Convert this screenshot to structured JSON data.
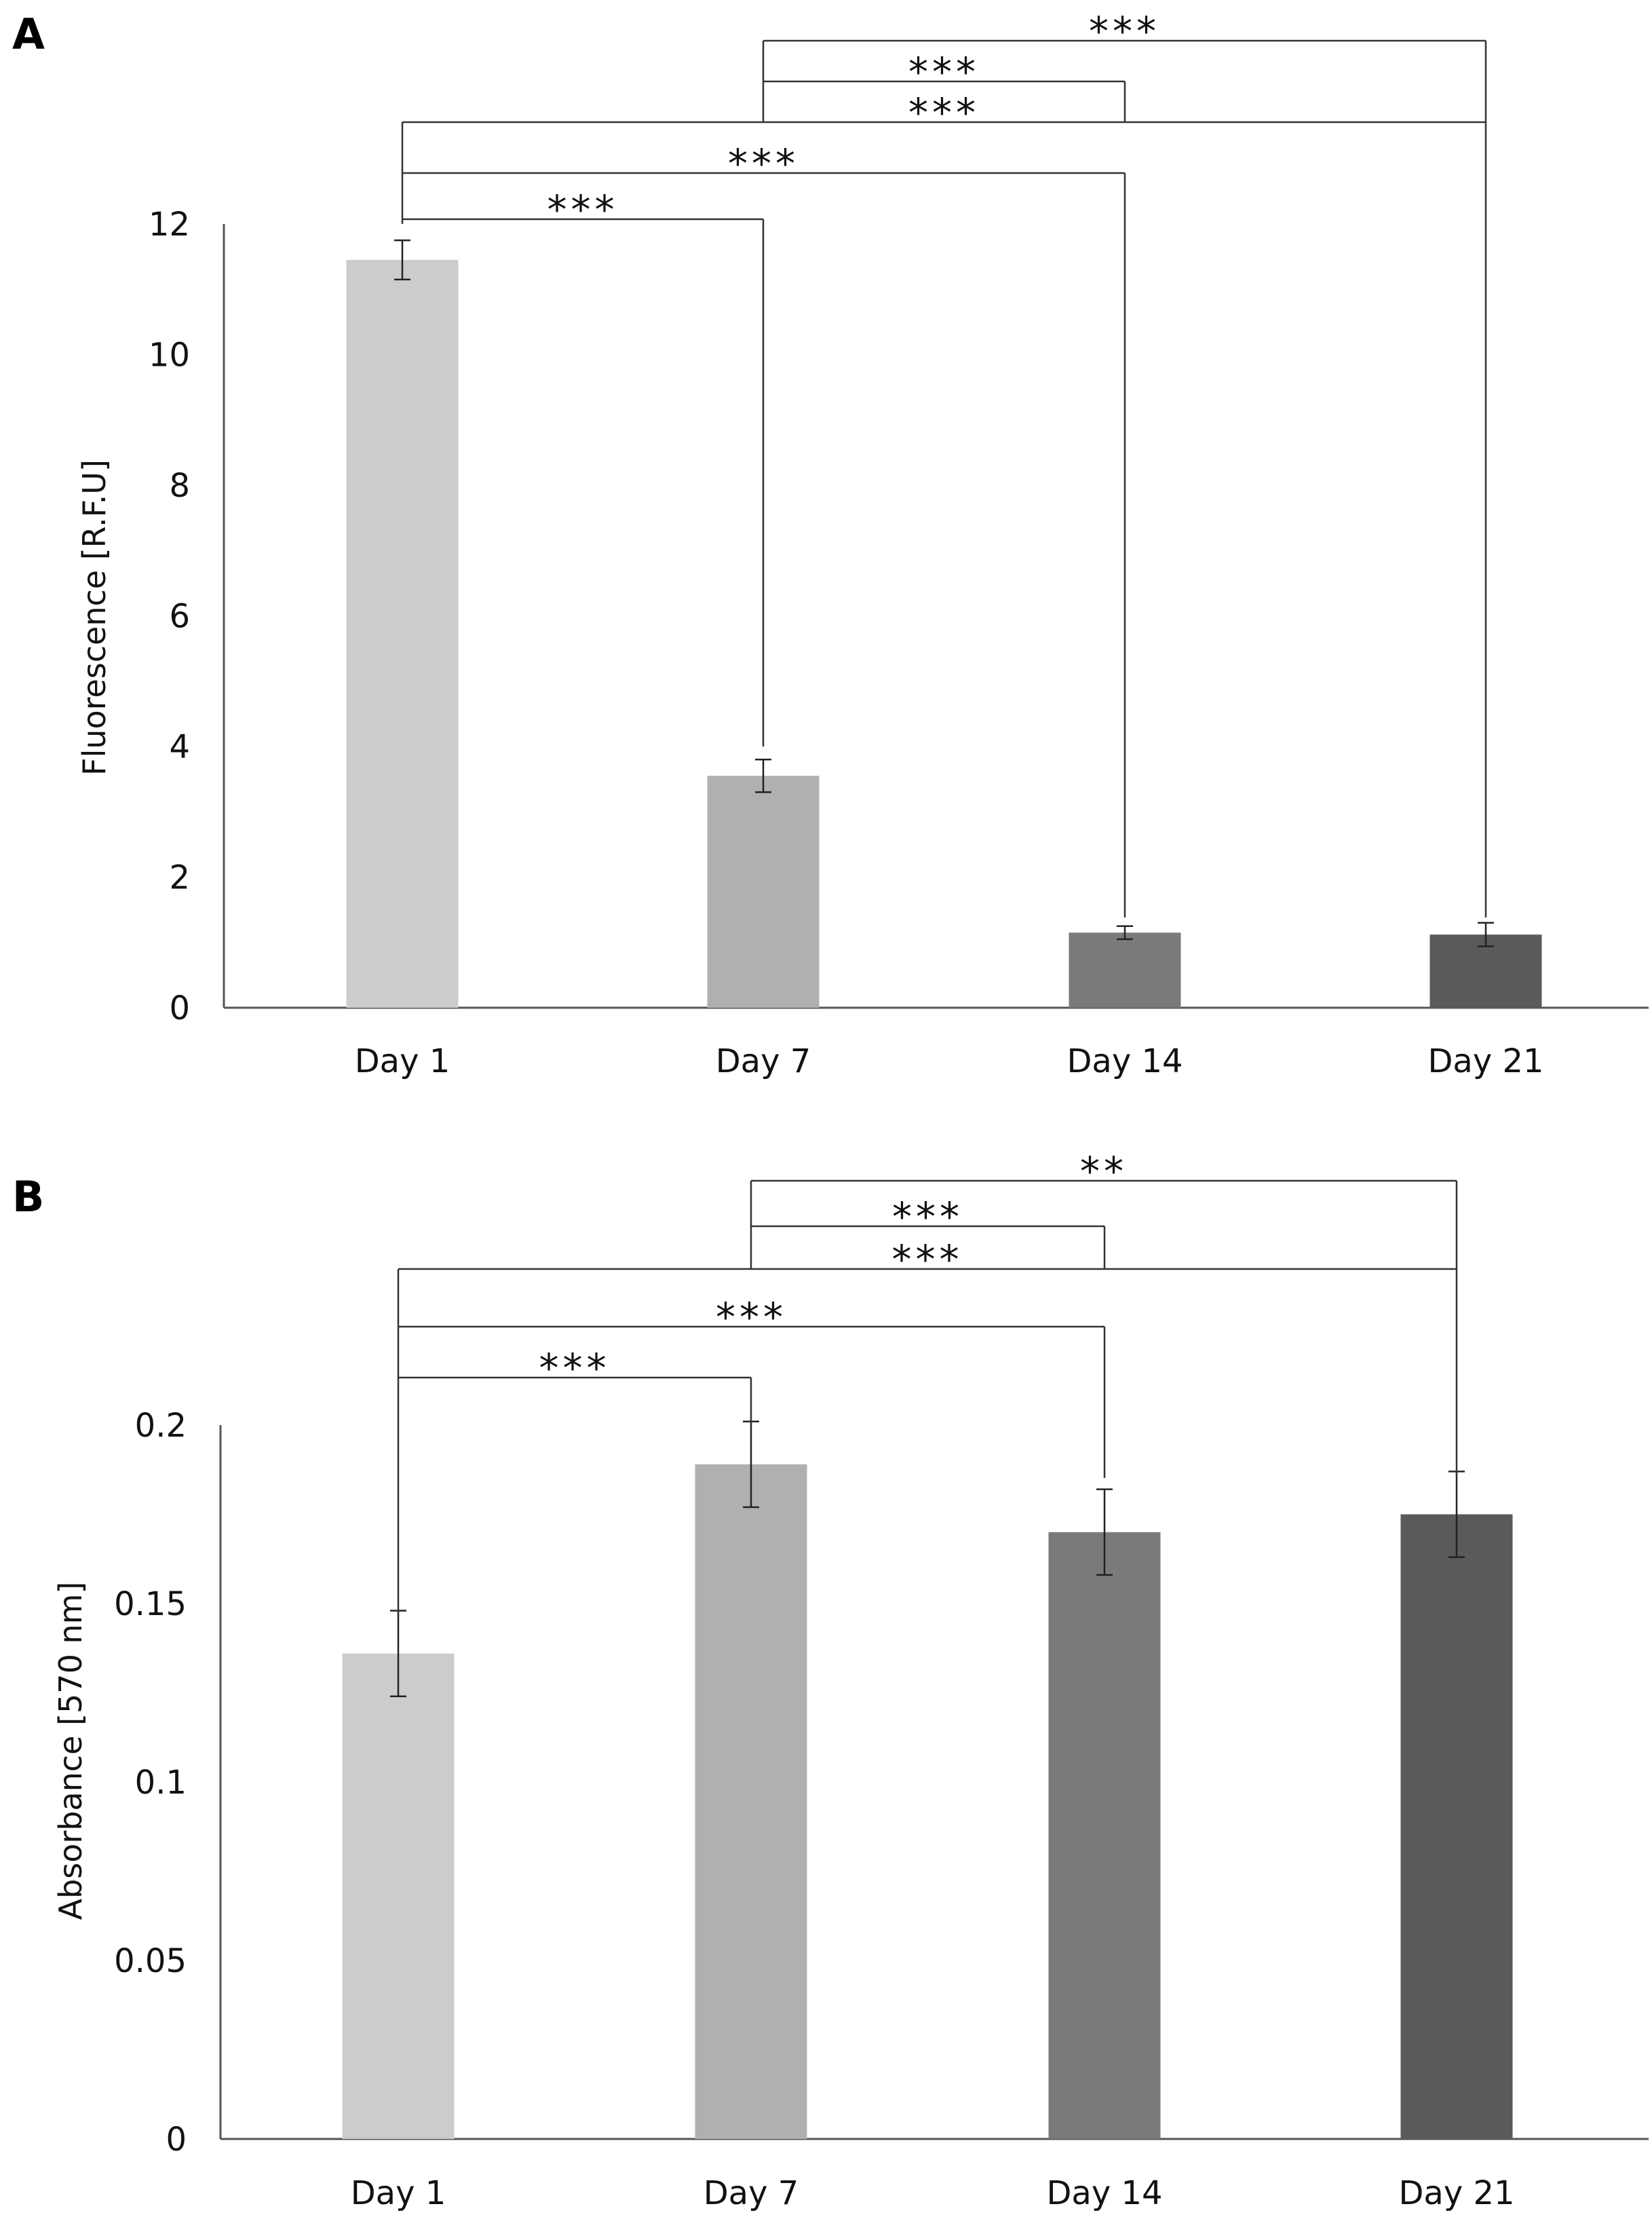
{
  "chart_data": [
    {
      "type": "bar",
      "panel_label": "A",
      "title": "",
      "xlabel": "",
      "ylabel": "Fluorescence [R.F.U]",
      "ylim": [
        0,
        12
      ],
      "yticks": [
        "0",
        "2",
        "4",
        "6",
        "8",
        "10",
        "12"
      ],
      "categories": [
        "Day 1",
        "Day 7",
        "Day 14",
        "Day 21"
      ],
      "values": [
        11.45,
        3.55,
        1.15,
        1.12
      ],
      "errors": [
        0.3,
        0.25,
        0.1,
        0.18
      ],
      "colors": [
        "#cccccc",
        "#b0b0b0",
        "#7a7a7a",
        "#5a5a5a"
      ],
      "grid": false,
      "legend": "none",
      "significance": [
        {
          "from": 0,
          "to": 1,
          "label": "***"
        },
        {
          "from": 0,
          "to": 2,
          "label": "***"
        },
        {
          "from": 0,
          "to": 3,
          "label": "***"
        },
        {
          "from": 1,
          "to": 2,
          "label": "***"
        },
        {
          "from": 1,
          "to": 3,
          "label": "***"
        }
      ]
    },
    {
      "type": "bar",
      "panel_label": "B",
      "title": "",
      "xlabel": "",
      "ylabel": "Absorbance [570 nm]",
      "ylim": [
        0,
        0.2
      ],
      "yticks": [
        "0",
        "0.05",
        "0.1",
        "0.15",
        "0.2"
      ],
      "categories": [
        "Day 1",
        "Day 7",
        "Day 14",
        "Day 21"
      ],
      "values": [
        0.136,
        0.189,
        0.17,
        0.175
      ],
      "errors": [
        0.012,
        0.012,
        0.012,
        0.012
      ],
      "colors": [
        "#cccccc",
        "#b0b0b0",
        "#7a7a7a",
        "#5a5a5a"
      ],
      "grid": false,
      "legend": "none",
      "significance": [
        {
          "from": 0,
          "to": 1,
          "label": "***"
        },
        {
          "from": 0,
          "to": 2,
          "label": "***"
        },
        {
          "from": 0,
          "to": 3,
          "label": "***"
        },
        {
          "from": 1,
          "to": 2,
          "label": "***"
        },
        {
          "from": 1,
          "to": 3,
          "label": "**"
        }
      ]
    }
  ]
}
